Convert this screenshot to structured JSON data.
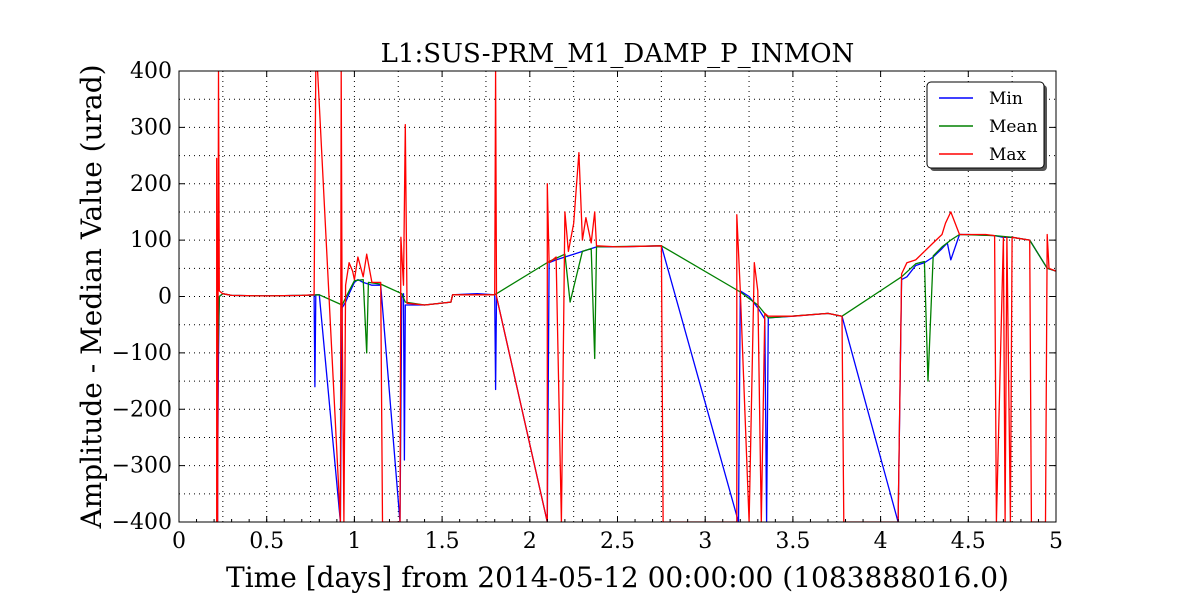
{
  "chart_data": {
    "type": "line",
    "title": "L1:SUS-PRM_M1_DAMP_P_INMON",
    "xlabel": "Time [days] from 2014-05-12 00:00:00 (1083888016.0)",
    "ylabel": "Amplitude - Median Value (urad)",
    "xlim": [
      0,
      5
    ],
    "ylim": [
      -400,
      400
    ],
    "xticks": [
      0,
      0.5,
      1,
      1.5,
      2,
      2.5,
      3,
      3.5,
      4,
      4.5,
      5
    ],
    "xtick_labels": [
      "0",
      "0.5",
      "1",
      "1.5",
      "2",
      "2.5",
      "3",
      "3.5",
      "4",
      "4.5",
      "5"
    ],
    "yticks": [
      -400,
      -300,
      -200,
      -100,
      0,
      100,
      200,
      300,
      400
    ],
    "ytick_labels": [
      "−400",
      "−300",
      "−200",
      "−100",
      "0",
      "100",
      "200",
      "300",
      "400"
    ],
    "grid": true,
    "legend_position": "top-right",
    "series": [
      {
        "name": "Min",
        "color": "#0000ff",
        "points": [
          [
            0.22,
            -400
          ],
          [
            0.22,
            -320
          ],
          [
            0.225,
            -100
          ],
          [
            0.23,
            0
          ],
          [
            0.25,
            5
          ],
          [
            0.3,
            2
          ],
          [
            0.5,
            1
          ],
          [
            0.7,
            2
          ],
          [
            0.77,
            3
          ],
          [
            0.775,
            -160
          ],
          [
            0.78,
            3
          ],
          [
            0.8,
            3
          ],
          [
            0.92,
            -400
          ],
          [
            0.925,
            -190
          ],
          [
            0.93,
            -20
          ],
          [
            0.95,
            -10
          ],
          [
            0.97,
            5
          ],
          [
            1.0,
            25
          ],
          [
            1.02,
            30
          ],
          [
            1.05,
            25
          ],
          [
            1.1,
            20
          ],
          [
            1.15,
            20
          ],
          [
            1.26,
            -400
          ],
          [
            1.27,
            0
          ],
          [
            1.28,
            5
          ],
          [
            1.285,
            -290
          ],
          [
            1.29,
            -15
          ],
          [
            1.4,
            -15
          ],
          [
            1.55,
            -10
          ],
          [
            1.56,
            3
          ],
          [
            1.7,
            5
          ],
          [
            1.8,
            3
          ],
          [
            1.805,
            -165
          ],
          [
            1.81,
            0
          ],
          [
            2.1,
            -400
          ],
          [
            2.11,
            60
          ],
          [
            2.15,
            65
          ],
          [
            2.2,
            70
          ],
          [
            2.25,
            75
          ],
          [
            2.3,
            80
          ],
          [
            2.35,
            85
          ],
          [
            2.38,
            88
          ],
          [
            2.5,
            88
          ],
          [
            2.75,
            90
          ],
          [
            3.19,
            -400
          ],
          [
            3.2,
            10
          ],
          [
            3.25,
            0
          ],
          [
            3.3,
            -20
          ],
          [
            3.34,
            -40
          ],
          [
            3.35,
            -400
          ],
          [
            3.36,
            -38
          ],
          [
            3.5,
            -35
          ],
          [
            3.7,
            -30
          ],
          [
            3.78,
            -35
          ],
          [
            4.1,
            -400
          ],
          [
            4.12,
            30
          ],
          [
            4.15,
            35
          ],
          [
            4.2,
            55
          ],
          [
            4.25,
            60
          ],
          [
            4.3,
            70
          ],
          [
            4.35,
            85
          ],
          [
            4.38,
            95
          ],
          [
            4.4,
            65
          ],
          [
            4.45,
            110
          ],
          [
            4.5,
            110
          ],
          [
            4.65,
            108
          ],
          [
            4.7,
            105
          ],
          [
            4.75,
            105
          ],
          [
            4.85,
            100
          ],
          [
            4.95,
            50
          ],
          [
            5.0,
            45
          ]
        ]
      },
      {
        "name": "Mean",
        "color": "#008000",
        "points": [
          [
            0.22,
            -130
          ],
          [
            0.23,
            0
          ],
          [
            0.25,
            5
          ],
          [
            0.3,
            2
          ],
          [
            0.5,
            1
          ],
          [
            0.7,
            2
          ],
          [
            0.8,
            3
          ],
          [
            0.93,
            -15
          ],
          [
            0.97,
            10
          ],
          [
            1.0,
            28
          ],
          [
            1.05,
            30
          ],
          [
            1.07,
            -100
          ],
          [
            1.08,
            25
          ],
          [
            1.15,
            22
          ],
          [
            1.27,
            5
          ],
          [
            1.29,
            -10
          ],
          [
            1.4,
            -15
          ],
          [
            1.55,
            -10
          ],
          [
            1.56,
            3
          ],
          [
            1.8,
            3
          ],
          [
            2.11,
            62
          ],
          [
            2.2,
            75
          ],
          [
            2.23,
            -10
          ],
          [
            2.3,
            80
          ],
          [
            2.35,
            85
          ],
          [
            2.37,
            -110
          ],
          [
            2.38,
            88
          ],
          [
            2.75,
            90
          ],
          [
            3.2,
            8
          ],
          [
            3.3,
            -15
          ],
          [
            3.36,
            -38
          ],
          [
            3.7,
            -30
          ],
          [
            3.78,
            -35
          ],
          [
            4.12,
            35
          ],
          [
            4.2,
            58
          ],
          [
            4.25,
            62
          ],
          [
            4.27,
            -150
          ],
          [
            4.3,
            72
          ],
          [
            4.35,
            88
          ],
          [
            4.4,
            100
          ],
          [
            4.45,
            110
          ],
          [
            4.65,
            108
          ],
          [
            4.75,
            105
          ],
          [
            4.85,
            100
          ],
          [
            4.95,
            50
          ],
          [
            5.0,
            45
          ]
        ]
      },
      {
        "name": "Max",
        "color": "#ff0000",
        "points": [
          [
            0.215,
            -400
          ],
          [
            0.215,
            245
          ],
          [
            0.22,
            -400
          ],
          [
            0.225,
            400
          ],
          [
            0.23,
            10
          ],
          [
            0.25,
            5
          ],
          [
            0.3,
            2
          ],
          [
            0.5,
            1
          ],
          [
            0.7,
            2
          ],
          [
            0.77,
            3
          ],
          [
            0.78,
            400
          ],
          [
            0.79,
            400
          ],
          [
            0.92,
            -400
          ],
          [
            0.925,
            400
          ],
          [
            0.93,
            -20
          ],
          [
            0.94,
            -400
          ],
          [
            0.95,
            20
          ],
          [
            0.97,
            60
          ],
          [
            0.99,
            45
          ],
          [
            1.0,
            30
          ],
          [
            1.02,
            70
          ],
          [
            1.05,
            35
          ],
          [
            1.07,
            75
          ],
          [
            1.1,
            25
          ],
          [
            1.15,
            25
          ],
          [
            1.16,
            -400
          ],
          [
            1.26,
            -400
          ],
          [
            1.265,
            105
          ],
          [
            1.28,
            20
          ],
          [
            1.29,
            305
          ],
          [
            1.3,
            -12
          ],
          [
            1.4,
            -15
          ],
          [
            1.55,
            -10
          ],
          [
            1.56,
            3
          ],
          [
            1.8,
            3
          ],
          [
            1.805,
            400
          ],
          [
            1.81,
            0
          ],
          [
            2.1,
            -400
          ],
          [
            2.1,
            200
          ],
          [
            2.11,
            60
          ],
          [
            2.15,
            70
          ],
          [
            2.18,
            -400
          ],
          [
            2.2,
            150
          ],
          [
            2.22,
            80
          ],
          [
            2.25,
            130
          ],
          [
            2.28,
            255
          ],
          [
            2.3,
            100
          ],
          [
            2.32,
            140
          ],
          [
            2.35,
            95
          ],
          [
            2.37,
            150
          ],
          [
            2.38,
            90
          ],
          [
            2.5,
            88
          ],
          [
            2.75,
            90
          ],
          [
            2.76,
            -400
          ],
          [
            3.18,
            -400
          ],
          [
            3.18,
            145
          ],
          [
            3.2,
            10
          ],
          [
            3.25,
            -400
          ],
          [
            3.28,
            60
          ],
          [
            3.3,
            10
          ],
          [
            3.32,
            -400
          ],
          [
            3.34,
            -30
          ],
          [
            3.36,
            -35
          ],
          [
            3.5,
            -35
          ],
          [
            3.7,
            -30
          ],
          [
            3.78,
            -35
          ],
          [
            3.79,
            -400
          ],
          [
            4.1,
            -400
          ],
          [
            4.12,
            40
          ],
          [
            4.15,
            60
          ],
          [
            4.2,
            65
          ],
          [
            4.3,
            95
          ],
          [
            4.35,
            110
          ],
          [
            4.37,
            130
          ],
          [
            4.4,
            150
          ],
          [
            4.45,
            110
          ],
          [
            4.6,
            110
          ],
          [
            4.65,
            108
          ],
          [
            4.66,
            -400
          ],
          [
            4.7,
            105
          ],
          [
            4.71,
            -400
          ],
          [
            4.72,
            105
          ],
          [
            4.74,
            -400
          ],
          [
            4.75,
            105
          ],
          [
            4.85,
            100
          ],
          [
            4.86,
            -400
          ],
          [
            4.94,
            -400
          ],
          [
            4.95,
            110
          ],
          [
            4.96,
            50
          ],
          [
            5.0,
            45
          ]
        ]
      }
    ]
  }
}
